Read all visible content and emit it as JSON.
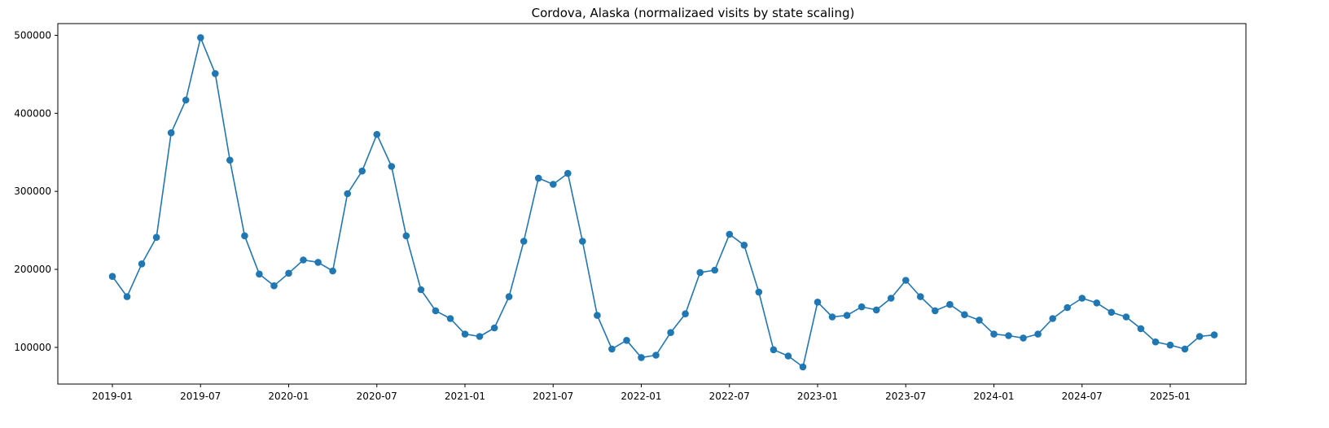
{
  "chart_data": {
    "type": "line",
    "title": "Cordova, Alaska (normalizaed visits by state scaling)",
    "xlabel": "",
    "ylabel": "",
    "x_ticks": [
      "2019-01",
      "2019-07",
      "2020-01",
      "2020-07",
      "2021-01",
      "2021-07",
      "2022-01",
      "2022-07",
      "2023-01",
      "2023-07",
      "2024-01",
      "2024-07",
      "2025-01"
    ],
    "y_ticks": [
      100000,
      200000,
      300000,
      400000,
      500000
    ],
    "xlim": [
      "2018-10",
      "2025-07"
    ],
    "ylim": [
      53000,
      515000
    ],
    "grid": false,
    "marker": "circle",
    "color": "#1f77b4",
    "series": [
      {
        "x": [
          "2019-01",
          "2019-02",
          "2019-03",
          "2019-04",
          "2019-05",
          "2019-06",
          "2019-07",
          "2019-08",
          "2019-09",
          "2019-10",
          "2019-11",
          "2019-12",
          "2020-01",
          "2020-02",
          "2020-03",
          "2020-04",
          "2020-05",
          "2020-06",
          "2020-07",
          "2020-08",
          "2020-09",
          "2020-10",
          "2020-11",
          "2020-12",
          "2021-01",
          "2021-02",
          "2021-03",
          "2021-04",
          "2021-05",
          "2021-06",
          "2021-07",
          "2021-08",
          "2021-09",
          "2021-10",
          "2021-11",
          "2021-12",
          "2022-01",
          "2022-02",
          "2022-03",
          "2022-04",
          "2022-05",
          "2022-06",
          "2022-07",
          "2022-08",
          "2022-09",
          "2022-10",
          "2022-11",
          "2022-12",
          "2023-01",
          "2023-02",
          "2023-03",
          "2023-04",
          "2023-05",
          "2023-06",
          "2023-07",
          "2023-08",
          "2023-09",
          "2023-10",
          "2023-11",
          "2023-12",
          "2024-01",
          "2024-02",
          "2024-03",
          "2024-04",
          "2024-05",
          "2024-06",
          "2024-07",
          "2024-08",
          "2024-09",
          "2024-10",
          "2024-11",
          "2024-12",
          "2025-01",
          "2025-02",
          "2025-03",
          "2025-04"
        ],
        "values": [
          191000,
          165000,
          207000,
          241000,
          375000,
          417000,
          497000,
          451000,
          340000,
          243000,
          194000,
          179000,
          195000,
          212000,
          209000,
          198000,
          297000,
          326000,
          373000,
          332000,
          243000,
          174000,
          147000,
          137000,
          117000,
          114000,
          125000,
          165000,
          236000,
          317000,
          309000,
          323000,
          236000,
          141000,
          98000,
          109000,
          87000,
          90000,
          119000,
          143000,
          196000,
          199000,
          245000,
          231000,
          171000,
          97000,
          89000,
          75000,
          158000,
          139000,
          141000,
          152000,
          148000,
          163000,
          186000,
          165000,
          147000,
          155000,
          142000,
          135000,
          117000,
          115000,
          112000,
          117000,
          137000,
          151000,
          163000,
          157000,
          145000,
          139000,
          124000,
          107000,
          103000,
          98000,
          114000,
          116000
        ]
      }
    ]
  }
}
